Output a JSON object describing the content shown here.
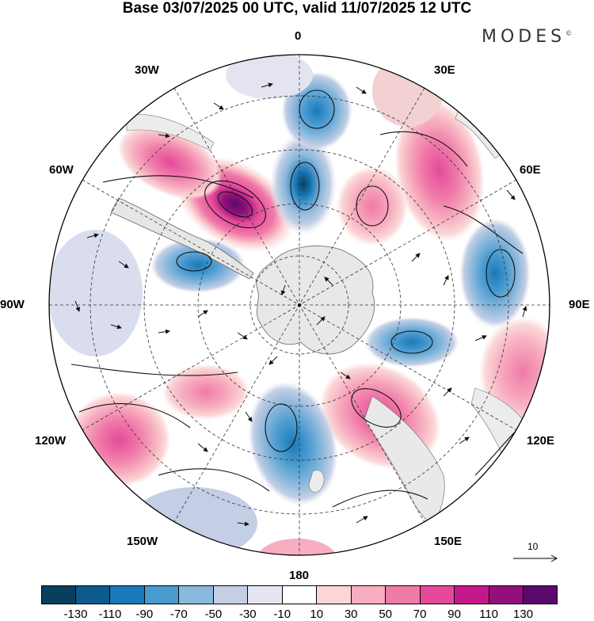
{
  "title": "Base 03/07/2025 00 UTC, valid 11/07/2025 12 UTC",
  "brand": "MODES",
  "brand_mark": "©",
  "map": {
    "projection": "south-polar-stereographic",
    "lon_labels": {
      "top": "0",
      "bottom": "180",
      "left": "90W",
      "right": "90E",
      "l30w": "30W",
      "l60w": "60W",
      "l120w": "120W",
      "l150w": "150W",
      "l30e": "30E",
      "l60e": "60E",
      "l120e": "120E",
      "l150e": "150E"
    },
    "reference_vector_label": "10"
  },
  "colorbar": {
    "colors": [
      "#0a3e5e",
      "#0c5b8c",
      "#1a79b8",
      "#4a9bd0",
      "#8ab8dc",
      "#c4cfe6",
      "#e6e6f2",
      "#ffffff",
      "#fbd6d6",
      "#f7aec0",
      "#f07aa8",
      "#e54a9a",
      "#c4188a",
      "#93107c",
      "#5a0a6a"
    ],
    "tick_labels": [
      "-130",
      "-110",
      "-90",
      "-70",
      "-50",
      "-30",
      "-10",
      "10",
      "30",
      "50",
      "70",
      "90",
      "110",
      "130"
    ]
  }
}
